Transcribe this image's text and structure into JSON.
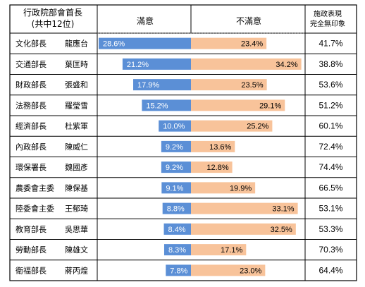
{
  "header": {
    "col1_line1": "行政院部會首長",
    "col1_line2": "(共中12位)",
    "col2": "滿意",
    "col3": "不滿意",
    "col4_line1": "施政表現",
    "col4_line2": "完全無印象"
  },
  "colors": {
    "satisfied": "#5b8fd6",
    "dissatisfied": "#f8c39a",
    "grid": "#000000"
  },
  "chart_data": {
    "type": "bar",
    "categories": [
      {
        "title": "文化部長",
        "name": "龍應台"
      },
      {
        "title": "交通部長",
        "name": "葉匡時"
      },
      {
        "title": "財政部長",
        "name": "張盛和"
      },
      {
        "title": "法務部長",
        "name": "羅瑩雪"
      },
      {
        "title": "經濟部長",
        "name": "杜紫軍"
      },
      {
        "title": "內政部長",
        "name": "陳威仁"
      },
      {
        "title": "環保署長",
        "name": "魏國彥"
      },
      {
        "title": "農委會主委",
        "name": "陳保基"
      },
      {
        "title": "陸委會主委",
        "name": "王郁琦"
      },
      {
        "title": "教育部長",
        "name": "吳思華"
      },
      {
        "title": "勞動部長",
        "name": "陳雄文"
      },
      {
        "title": "衛福部長",
        "name": "蔣丙煌"
      }
    ],
    "series": [
      {
        "name": "滿意",
        "values": [
          28.6,
          21.2,
          17.9,
          15.2,
          10.0,
          9.2,
          9.2,
          9.1,
          8.8,
          8.4,
          8.3,
          7.8
        ]
      },
      {
        "name": "不滿意",
        "values": [
          23.4,
          34.2,
          23.5,
          29.1,
          25.2,
          13.6,
          12.8,
          19.9,
          33.1,
          32.5,
          17.1,
          23.0
        ]
      },
      {
        "name": "施政表現完全無印象",
        "values": [
          41.7,
          38.8,
          53.6,
          51.2,
          60.1,
          72.4,
          74.4,
          66.5,
          53.1,
          53.3,
          70.3,
          64.4
        ]
      }
    ],
    "value_labels": {
      "satisfied": [
        "28.6%",
        "21.2%",
        "17.9%",
        "15.2%",
        "10.0%",
        "9.2%",
        "9.2%",
        "9.1%",
        "8.8%",
        "8.4%",
        "8.3%",
        "7.8%"
      ],
      "dissatisfied": [
        "23.4%",
        "34.2%",
        "23.5%",
        "29.1%",
        "25.2%",
        "13.6%",
        "12.8%",
        "19.9%",
        "33.1%",
        "32.5%",
        "17.1%",
        "23.0%"
      ],
      "no_impression": [
        "41.7%",
        "38.8%",
        "53.6%",
        "51.2%",
        "60.1%",
        "72.4%",
        "74.4%",
        "66.5%",
        "53.1%",
        "53.3%",
        "70.3%",
        "64.4%"
      ]
    }
  }
}
